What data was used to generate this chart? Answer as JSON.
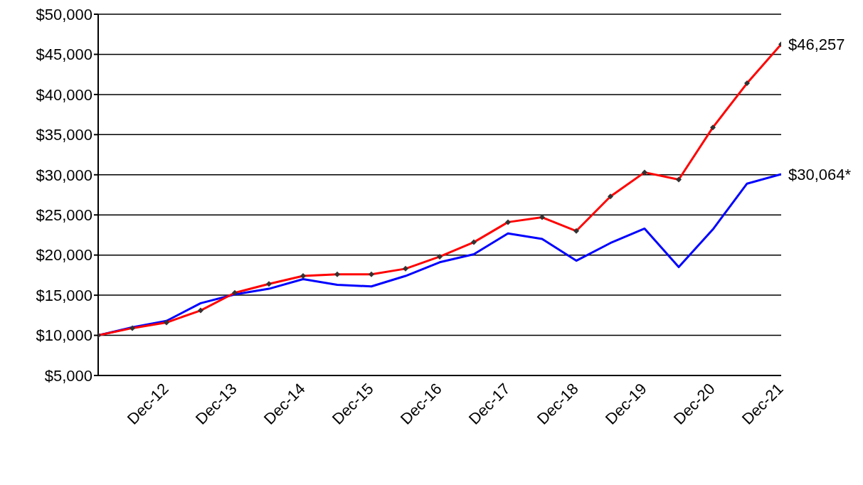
{
  "chart_data": {
    "type": "line",
    "categories": [
      null,
      null,
      "Dec-12",
      null,
      "Dec-13",
      null,
      "Dec-14",
      null,
      "Dec-15",
      null,
      "Dec-16",
      null,
      "Dec-17",
      null,
      "Dec-18",
      null,
      "Dec-19",
      null,
      "Dec-20",
      null,
      "Dec-21"
    ],
    "series": [
      {
        "color": "#0000ff",
        "marker": "none",
        "values": [
          10000,
          11000,
          11800,
          14000,
          15100,
          15800,
          17000,
          16300,
          16100,
          17400,
          19100,
          20100,
          22700,
          22000,
          19300,
          21500,
          23300,
          18500,
          23200,
          28900,
          30064
        ]
      },
      {
        "color": "#ff0000",
        "marker": "diamond",
        "values": [
          10000,
          10900,
          11600,
          13100,
          15300,
          16400,
          17400,
          17600,
          17600,
          18300,
          19800,
          21600,
          24100,
          24700,
          23000,
          27300,
          30300,
          29400,
          35900,
          41400,
          46257
        ]
      }
    ],
    "ylim": [
      5000,
      50000
    ],
    "yticks": [
      {
        "value": 5000,
        "label": "$5,000"
      },
      {
        "value": 10000,
        "label": "$10,000"
      },
      {
        "value": 15000,
        "label": "$15,000"
      },
      {
        "value": 20000,
        "label": "$20,000"
      },
      {
        "value": 25000,
        "label": "$25,000"
      },
      {
        "value": 30000,
        "label": "$30,000"
      },
      {
        "value": 35000,
        "label": "$35,000"
      },
      {
        "value": 40000,
        "label": "$40,000"
      },
      {
        "value": 45000,
        "label": "$45,000"
      },
      {
        "value": 50000,
        "label": "$50,000"
      }
    ],
    "grid": "y",
    "annotations": [
      {
        "text": "$46,257",
        "x": "Dec-21",
        "y": 46257
      },
      {
        "text": "$30,064*",
        "x": "Dec-21",
        "y": 30064
      }
    ]
  }
}
